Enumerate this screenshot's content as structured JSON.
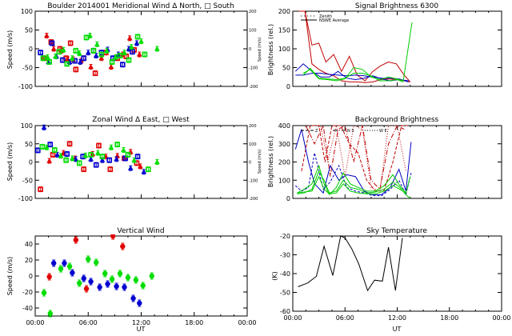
{
  "colors": {
    "red": "#e00000",
    "blue": "#0000d0",
    "green": "#00dd00",
    "darkred": "#c00000",
    "black": "#000000"
  },
  "x_ticks": [
    "00:00",
    "06:00",
    "12:00",
    "18:00",
    "00:00"
  ],
  "x_label": "UT",
  "chart_data": [
    {
      "id": "meridional",
      "type": "scatter",
      "title": "Boulder   2014001     Meridional Wind   Δ North, □ South",
      "ylabel": "Speed (m/s)",
      "ylabel_right": "Speed (m/s)",
      "ylim": [
        -100,
        100
      ],
      "yticks": [
        "100",
        "50",
        "0",
        "-50",
        "-100"
      ],
      "yticks_right": [
        "200",
        "100",
        "0",
        "-100",
        "-200"
      ],
      "xlim": [
        0,
        24
      ],
      "series": [
        {
          "name": "red",
          "color": "#e00000",
          "x": [
            1.0,
            1.3,
            1.8,
            2.1,
            2.8,
            3.0,
            3.5,
            3.7,
            4.0,
            4.3,
            4.6,
            5.2,
            5.5,
            6.3,
            6.8,
            7.5,
            8.0,
            8.6,
            9.3,
            9.9,
            10.3,
            10.7,
            11.2,
            11.8
          ],
          "y": [
            -25,
            35,
            18,
            0,
            0,
            -5,
            -25,
            -28,
            15,
            -28,
            -55,
            -32,
            -25,
            -48,
            -65,
            -25,
            -10,
            -48,
            -25,
            -15,
            -20,
            28,
            -3,
            -15
          ]
        },
        {
          "name": "blue",
          "color": "#0000d0",
          "x": [
            0.6,
            1.5,
            1.9,
            2.4,
            3.1,
            3.9,
            4.5,
            5.1,
            5.5,
            6.0,
            6.6,
            6.9,
            7.5,
            8.2,
            8.8,
            9.4,
            9.9,
            10.6,
            11.0,
            11.5
          ],
          "y": [
            -10,
            -35,
            15,
            -20,
            -30,
            -35,
            -32,
            -35,
            -25,
            -10,
            -5,
            -18,
            -10,
            -2,
            -25,
            -15,
            -42,
            0,
            -8,
            15
          ]
        },
        {
          "name": "green",
          "color": "#00dd00",
          "x": [
            0.9,
            1.4,
            1.6,
            2.3,
            2.7,
            3.2,
            3.6,
            4.2,
            4.6,
            5.0,
            5.8,
            6.2,
            6.6,
            7.0,
            7.5,
            8.1,
            8.7,
            9.1,
            9.6,
            10.1,
            10.6,
            10.9,
            11.6,
            12.0,
            12.4,
            13.8
          ],
          "y": [
            -25,
            -22,
            -35,
            -20,
            -8,
            -3,
            -40,
            -25,
            -5,
            -12,
            30,
            35,
            -5,
            12,
            -15,
            -5,
            -35,
            -22,
            -18,
            -10,
            -30,
            5,
            32,
            20,
            -15,
            0
          ]
        }
      ]
    },
    {
      "id": "signal",
      "type": "line",
      "title": "Signal Brightness      6300",
      "ylabel": "Brightness (rel.)",
      "ylim": [
        0,
        200
      ],
      "yticks": [
        "200",
        "150",
        "100",
        "50",
        "0"
      ],
      "xlim": [
        0,
        24
      ],
      "legend": [
        {
          "style": "dotted",
          "label": "Zenith"
        },
        {
          "style": "solid",
          "label": "NSWE Average"
        }
      ],
      "legend_position": "top-left",
      "series": [
        {
          "name": "red-1",
          "color": "#c00000",
          "x": [
            0.7,
            1.4,
            2.2,
            3.0,
            3.8,
            4.7,
            5.6,
            6.5,
            7.4,
            8.3,
            9.2,
            10.1,
            11.0,
            11.9,
            12.8,
            13.5
          ],
          "y": [
            200,
            200,
            110,
            115,
            65,
            85,
            40,
            80,
            30,
            15,
            40,
            55,
            65,
            60,
            30,
            12
          ]
        },
        {
          "name": "red-2",
          "color": "#c00000",
          "x": [
            0.7,
            1.4,
            2.2,
            3.0,
            3.8,
            4.7,
            5.6,
            6.5,
            7.4,
            8.3,
            9.2,
            10.1,
            11.0,
            11.9,
            12.8,
            13.5
          ],
          "y": [
            200,
            200,
            60,
            45,
            35,
            28,
            15,
            12,
            12,
            10,
            12,
            18,
            20,
            18,
            15,
            12
          ]
        },
        {
          "name": "blue-1",
          "color": "#0000c0",
          "x": [
            0.3,
            1.2,
            2.2,
            3.2,
            4.2,
            5.2,
            6.2,
            7.2,
            8.2,
            9.2,
            10.2,
            11.2,
            12.2,
            13.3
          ],
          "y": [
            40,
            60,
            40,
            25,
            25,
            40,
            22,
            18,
            22,
            28,
            20,
            15,
            18,
            15
          ]
        },
        {
          "name": "blue-2",
          "color": "#0000c0",
          "x": [
            0.3,
            1.2,
            2.2,
            3.2,
            4.2,
            5.2,
            6.2,
            7.2,
            8.2,
            9.2,
            10.2,
            11.2,
            12.2,
            13.3
          ],
          "y": [
            30,
            30,
            35,
            35,
            32,
            30,
            28,
            30,
            28,
            25,
            22,
            22,
            20,
            12
          ]
        },
        {
          "name": "green-1",
          "color": "#00cc00",
          "x": [
            1.2,
            2.0,
            3.0,
            4.0,
            5.0,
            6.0,
            7.0,
            8.0,
            9.0,
            10.0,
            11.0,
            12.0,
            12.7,
            13.7
          ],
          "y": [
            35,
            45,
            20,
            18,
            15,
            20,
            50,
            45,
            25,
            18,
            25,
            20,
            15,
            170
          ]
        },
        {
          "name": "green-2",
          "color": "#00cc00",
          "x": [
            1.2,
            2.0,
            3.0,
            4.0,
            5.0,
            6.0,
            7.0,
            8.0,
            9.0,
            10.0,
            11.0,
            12.0,
            12.7
          ],
          "y": [
            30,
            48,
            22,
            20,
            18,
            22,
            35,
            35,
            28,
            15,
            15,
            18,
            12
          ]
        }
      ]
    },
    {
      "id": "zonal",
      "type": "scatter",
      "title": "Zonal Wind      Δ East, □ West",
      "ylabel": "Speed (m/s)",
      "ylabel_right": "Speed (m/s)",
      "ylim": [
        -100,
        100
      ],
      "yticks": [
        "100",
        "50",
        "0",
        "-50",
        "-100"
      ],
      "yticks_right": [
        "200",
        "100",
        "0",
        "-100",
        "-200"
      ],
      "xlim": [
        0,
        24
      ],
      "series": [
        {
          "name": "red",
          "color": "#e00000",
          "x": [
            0.6,
            1.6,
            2.0,
            3.2,
            3.9,
            4.5,
            5.5,
            6.5,
            7.2,
            8.0,
            8.5,
            9.3,
            10.1,
            10.8,
            11.5,
            11.9
          ],
          "y": [
            -75,
            3,
            20,
            25,
            50,
            10,
            -20,
            22,
            45,
            15,
            -20,
            17,
            10,
            28,
            -3,
            -12
          ]
        },
        {
          "name": "blue",
          "color": "#0000d0",
          "x": [
            0.3,
            1.0,
            1.7,
            2.5,
            3.6,
            4.6,
            5.4,
            6.3,
            6.9,
            7.6,
            8.4,
            9.2,
            10.2,
            10.8,
            11.6,
            12.3
          ],
          "y": [
            32,
            95,
            48,
            20,
            22,
            8,
            15,
            8,
            -8,
            5,
            5,
            8,
            10,
            -17,
            15,
            -27
          ]
        },
        {
          "name": "green",
          "color": "#00dd00",
          "x": [
            0.8,
            1.3,
            2.2,
            2.9,
            3.5,
            4.2,
            5.0,
            5.7,
            6.3,
            7.1,
            7.6,
            8.6,
            9.3,
            10.0,
            10.5,
            11.2,
            12.8,
            13.8
          ],
          "y": [
            42,
            40,
            33,
            17,
            5,
            10,
            -3,
            18,
            20,
            25,
            15,
            40,
            48,
            33,
            20,
            5,
            -20,
            0
          ]
        }
      ]
    },
    {
      "id": "background",
      "type": "line",
      "title": "Background Brightness",
      "ylabel": "Brightness (rel.)",
      "ylim": [
        0,
        400
      ],
      "yticks": [
        "400",
        "300",
        "200",
        "100",
        "0"
      ],
      "xlim": [
        0,
        24
      ],
      "legend": [
        {
          "style": "dash",
          "label": "Z"
        },
        {
          "style": "dashdot",
          "label": "N S"
        },
        {
          "style": "dotted",
          "label": "W E"
        }
      ],
      "legend_position": "top-left",
      "series": [
        {
          "name": "red-1",
          "color": "#c00000",
          "x": [
            1.0,
            2.0,
            3.0,
            3.7,
            4.5,
            5.5,
            6.5,
            7.5,
            8.5,
            9.5,
            10.5,
            11.5,
            12.5,
            13.2
          ],
          "y": [
            150,
            400,
            400,
            200,
            400,
            400,
            300,
            250,
            100,
            40,
            45,
            200,
            400,
            400
          ]
        },
        {
          "name": "red-2",
          "color": "#c00000",
          "x": [
            1.5,
            2.5,
            3.5,
            4.3,
            5.2,
            6.0,
            7.0,
            8.0,
            9.0,
            10.0,
            11.0,
            12.0,
            12.8
          ],
          "y": [
            400,
            300,
            400,
            120,
            380,
            400,
            200,
            400,
            100,
            50,
            300,
            400,
            380
          ]
        },
        {
          "name": "red-3",
          "color": "#c00000",
          "x": [
            2.2,
            3.2,
            4.0,
            5.0,
            6.0,
            7.0,
            8.0,
            9.0,
            10.0,
            11.0,
            12.0,
            13.0
          ],
          "y": [
            400,
            400,
            200,
            400,
            120,
            400,
            380,
            60,
            40,
            400,
            400,
            150
          ]
        },
        {
          "name": "blue-1",
          "color": "#0000c0",
          "x": [
            0.3,
            1.0,
            1.8,
            2.5,
            3.5,
            4.3,
            5.3,
            6.2,
            7.2,
            8.2,
            9.2,
            10.2,
            11.2,
            12.2,
            13.0,
            13.6
          ],
          "y": [
            270,
            380,
            200,
            80,
            30,
            180,
            100,
            130,
            120,
            40,
            20,
            20,
            60,
            160,
            40,
            310
          ]
        },
        {
          "name": "blue-2",
          "color": "#0000c0",
          "x": [
            0.3,
            1.0,
            1.8,
            2.5,
            3.5,
            4.3,
            5.3,
            6.2,
            7.2,
            8.2,
            9.2,
            10.2,
            11.2,
            12.2,
            13.0,
            13.6
          ],
          "y": [
            70,
            40,
            60,
            250,
            50,
            90,
            180,
            60,
            40,
            30,
            15,
            15,
            50,
            100,
            20,
            140
          ]
        },
        {
          "name": "green-1",
          "color": "#00cc00",
          "x": [
            0.5,
            1.3,
            2.2,
            3.0,
            3.6,
            4.2,
            5.0,
            5.8,
            6.6,
            7.5,
            8.5,
            9.5,
            10.5,
            11.5,
            12.3,
            13.0,
            13.5
          ],
          "y": [
            30,
            50,
            80,
            180,
            80,
            20,
            60,
            140,
            80,
            60,
            40,
            40,
            70,
            130,
            70,
            30,
            120
          ]
        },
        {
          "name": "green-2",
          "color": "#00cc00",
          "x": [
            0.5,
            1.3,
            2.2,
            3.0,
            3.6,
            4.2,
            5.0,
            5.8,
            6.6,
            7.5,
            8.5,
            9.5,
            10.5,
            11.5,
            12.3,
            13.0,
            13.5
          ],
          "y": [
            25,
            30,
            50,
            150,
            100,
            30,
            40,
            100,
            60,
            50,
            30,
            35,
            50,
            90,
            60,
            20,
            0
          ]
        },
        {
          "name": "green-3",
          "color": "#00cc00",
          "x": [
            0.5,
            1.3,
            2.2,
            3.0,
            3.6,
            4.2,
            5.0,
            5.8,
            6.6,
            7.5,
            8.5,
            9.5,
            10.5,
            11.5,
            12.3,
            13.0
          ],
          "y": [
            30,
            35,
            40,
            120,
            50,
            25,
            30,
            80,
            40,
            30,
            25,
            25,
            40,
            70,
            50,
            30
          ]
        }
      ]
    },
    {
      "id": "vertical",
      "type": "scatter",
      "title": "Vertical Wind",
      "ylabel": "Speed (m/s)",
      "xlabel": "UT",
      "ylim": [
        -50,
        50
      ],
      "yticks": [
        "40",
        "20",
        "0",
        "-20",
        "-40"
      ],
      "ytick_values": [
        40,
        20,
        0,
        -20,
        -40
      ],
      "xlim": [
        0,
        24
      ],
      "series": [
        {
          "name": "red",
          "color": "#e00000",
          "x": [
            1.6,
            4.6,
            5.8,
            8.8,
            9.9
          ],
          "y": [
            -1,
            45,
            -16,
            50,
            37
          ]
        },
        {
          "name": "blue",
          "color": "#0000d0",
          "x": [
            2.1,
            3.3,
            4.2,
            5.5,
            6.3,
            7.3,
            8.2,
            9.2,
            10.1,
            11.1,
            11.8
          ],
          "y": [
            16,
            16,
            4,
            -3,
            -7,
            -14,
            -10,
            -13,
            -14,
            -28,
            -34
          ]
        },
        {
          "name": "green",
          "color": "#00dd00",
          "x": [
            1.0,
            1.7,
            2.9,
            3.9,
            5.0,
            6.0,
            6.9,
            7.9,
            8.7,
            9.6,
            10.5,
            11.4,
            12.2,
            13.2
          ],
          "y": [
            -21,
            -47,
            9,
            12,
            -9,
            21,
            17,
            3,
            -4,
            3,
            -2,
            -5,
            -12,
            0
          ]
        }
      ]
    },
    {
      "id": "skytemp",
      "type": "line",
      "title": "Sky Temperature",
      "ylabel": "(K)",
      "xlabel": "UT",
      "ylim": [
        -60,
        -20
      ],
      "yticks": [
        "-20",
        "-30",
        "-40",
        "-50",
        "-60"
      ],
      "ytick_values": [
        -20,
        -30,
        -40,
        -50,
        -60
      ],
      "xlim": [
        0,
        24
      ],
      "series": [
        {
          "name": "temperature",
          "color": "#000000",
          "x": [
            0.6,
            1.7,
            2.7,
            3.6,
            4.6,
            5.5,
            6.0,
            6.8,
            7.6,
            8.6,
            9.4,
            10.3,
            11.0,
            11.8,
            12.6
          ],
          "y": [
            -47,
            -45,
            -41.5,
            -25.5,
            -41,
            -20,
            -21,
            -27,
            -35,
            -49,
            -43.5,
            -44,
            -26,
            -49,
            -21
          ]
        }
      ]
    }
  ]
}
